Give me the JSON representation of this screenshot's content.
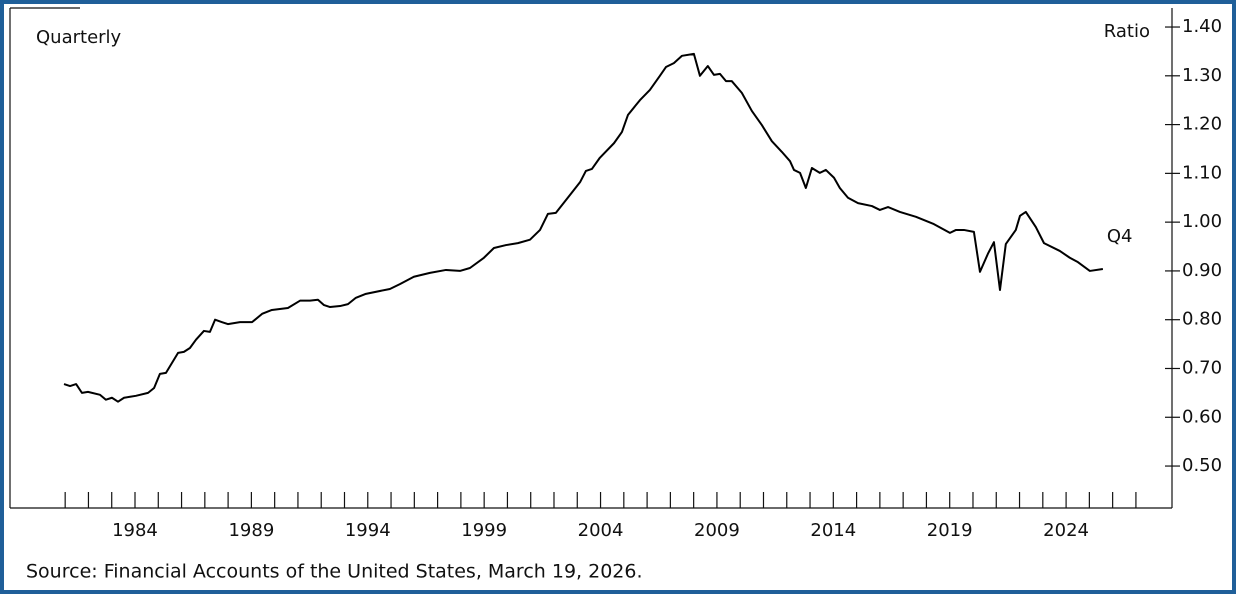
{
  "chart_data": {
    "type": "line",
    "annotations": {
      "frequency": "Quarterly",
      "unit": "Ratio",
      "last_point": "Q4"
    },
    "source": "Source: Financial Accounts of the United States, March 19, 2026.",
    "color": "#000000",
    "xlim": [
      1978.63,
      2028.55
    ],
    "xticks": [
      1984,
      1989,
      1994,
      1999,
      2004,
      2009,
      2014,
      2019,
      2024
    ],
    "minor_xticks": [
      1981,
      1982,
      1983,
      1984,
      1985,
      1986,
      1987,
      1988,
      1989,
      1990,
      1991,
      1992,
      1993,
      1994,
      1995,
      1996,
      1997,
      1998,
      1999,
      2000,
      2001,
      2002,
      2003,
      2004,
      2005,
      2006,
      2007,
      2008,
      2009,
      2010,
      2011,
      2012,
      2013,
      2014,
      2015,
      2016,
      2017,
      2018,
      2019,
      2020,
      2021,
      2022,
      2023,
      2024,
      2025,
      2026,
      2027
    ],
    "ylim": [
      0.414,
      1.439
    ],
    "yticks": [
      {
        "value": 0.5,
        "label": "0.50"
      },
      {
        "value": 0.6,
        "label": "0.60"
      },
      {
        "value": 0.7,
        "label": "0.70"
      },
      {
        "value": 0.8,
        "label": "0.80"
      },
      {
        "value": 0.9,
        "label": "0.90"
      },
      {
        "value": 1.0,
        "label": "1.00"
      },
      {
        "value": 1.1,
        "label": "1.10"
      },
      {
        "value": 1.2,
        "label": "1.20"
      },
      {
        "value": 1.3,
        "label": "1.30"
      },
      {
        "value": 1.4,
        "label": "1.40"
      }
    ],
    "x": [
      1980.95,
      1981.21,
      1981.47,
      1981.72,
      1981.98,
      1982.5,
      1982.75,
      1983.01,
      1983.27,
      1983.53,
      1983.79,
      1984.04,
      1984.56,
      1984.82,
      1985.07,
      1985.33,
      1985.85,
      1986.1,
      1986.36,
      1986.62,
      1986.96,
      1987.22,
      1987.44,
      1987.74,
      1987.99,
      1988.51,
      1989.03,
      1989.46,
      1989.88,
      1990.57,
      1991.09,
      1991.52,
      1991.86,
      1992.12,
      1992.38,
      1992.81,
      1993.15,
      1993.49,
      1993.92,
      1994.95,
      1995.38,
      1995.98,
      1996.67,
      1997.36,
      1997.96,
      1998.39,
      1998.99,
      1999.42,
      1999.94,
      2000.45,
      2000.97,
      2001.4,
      2001.74,
      2002.08,
      2002.69,
      2003.12,
      2003.37,
      2003.63,
      2003.97,
      2004.58,
      2004.92,
      2005.18,
      2005.69,
      2006.12,
      2006.55,
      2006.81,
      2007.15,
      2007.5,
      2008.01,
      2008.27,
      2008.61,
      2008.87,
      2009.13,
      2009.39,
      2009.64,
      2010.07,
      2010.5,
      2010.93,
      2011.36,
      2011.79,
      2012.14,
      2012.31,
      2012.57,
      2012.82,
      2013.08,
      2013.42,
      2013.68,
      2014.03,
      2014.28,
      2014.63,
      2015.06,
      2015.66,
      2016.0,
      2016.35,
      2016.86,
      2017.55,
      2018.32,
      2019.01,
      2019.27,
      2019.61,
      2020.04,
      2020.3,
      2020.64,
      2020.9,
      2021.16,
      2021.41,
      2021.84,
      2022.02,
      2022.27,
      2022.7,
      2023.05,
      2023.73,
      2024.16,
      2024.51,
      2025.02,
      2025.58
    ],
    "values": [
      0.668,
      0.664,
      0.668,
      0.65,
      0.652,
      0.646,
      0.636,
      0.64,
      0.632,
      0.64,
      0.642,
      0.644,
      0.65,
      0.66,
      0.689,
      0.691,
      0.732,
      0.734,
      0.742,
      0.759,
      0.777,
      0.775,
      0.8,
      0.795,
      0.791,
      0.795,
      0.795,
      0.812,
      0.82,
      0.824,
      0.839,
      0.839,
      0.841,
      0.83,
      0.826,
      0.828,
      0.832,
      0.845,
      0.853,
      0.863,
      0.873,
      0.888,
      0.896,
      0.902,
      0.9,
      0.906,
      0.927,
      0.947,
      0.953,
      0.957,
      0.964,
      0.984,
      1.017,
      1.019,
      1.056,
      1.082,
      1.105,
      1.109,
      1.132,
      1.162,
      1.185,
      1.22,
      1.25,
      1.271,
      1.3,
      1.318,
      1.326,
      1.341,
      1.345,
      1.3,
      1.32,
      1.302,
      1.304,
      1.289,
      1.289,
      1.265,
      1.228,
      1.199,
      1.166,
      1.144,
      1.125,
      1.107,
      1.101,
      1.07,
      1.111,
      1.101,
      1.107,
      1.091,
      1.07,
      1.05,
      1.039,
      1.033,
      1.025,
      1.031,
      1.021,
      1.011,
      0.996,
      0.978,
      0.984,
      0.984,
      0.98,
      0.898,
      0.935,
      0.959,
      0.861,
      0.955,
      0.984,
      1.013,
      1.021,
      0.99,
      0.957,
      0.941,
      0.927,
      0.918,
      0.9,
      0.904
    ]
  }
}
